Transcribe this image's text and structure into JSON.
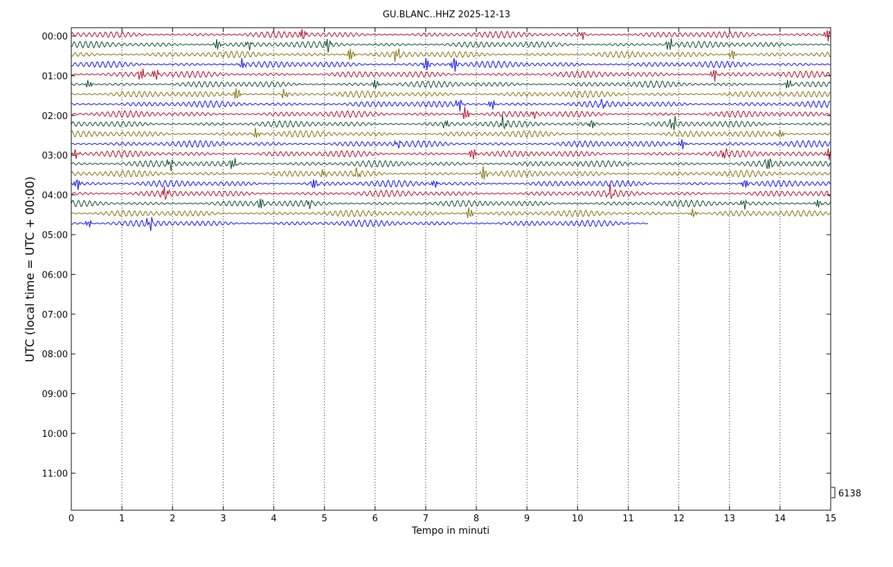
{
  "chart_data": {
    "type": "line",
    "title": "GU.BLANC..HHZ 2025-12-13",
    "xlabel": "Tempo in minuti",
    "ylabel": "UTC (local time = UTC + 00:00)",
    "xlim": [
      0,
      15
    ],
    "x_ticks": [
      "0",
      "1",
      "2",
      "3",
      "4",
      "5",
      "6",
      "7",
      "8",
      "9",
      "10",
      "11",
      "12",
      "13",
      "14",
      "15"
    ],
    "y_ticks": [
      "00:00",
      "01:00",
      "02:00",
      "03:00",
      "04:00",
      "05:00",
      "06:00",
      "07:00",
      "08:00",
      "09:00",
      "10:00",
      "11:00"
    ],
    "grid": "vertical dotted",
    "scale_label": "6138",
    "trace_colors": [
      "#b2001e",
      "#00451f",
      "#7f6b00",
      "#0000ff"
    ],
    "trace_count": 20,
    "last_trace_end_minute": 11.4,
    "trace_minutes": 15
  }
}
